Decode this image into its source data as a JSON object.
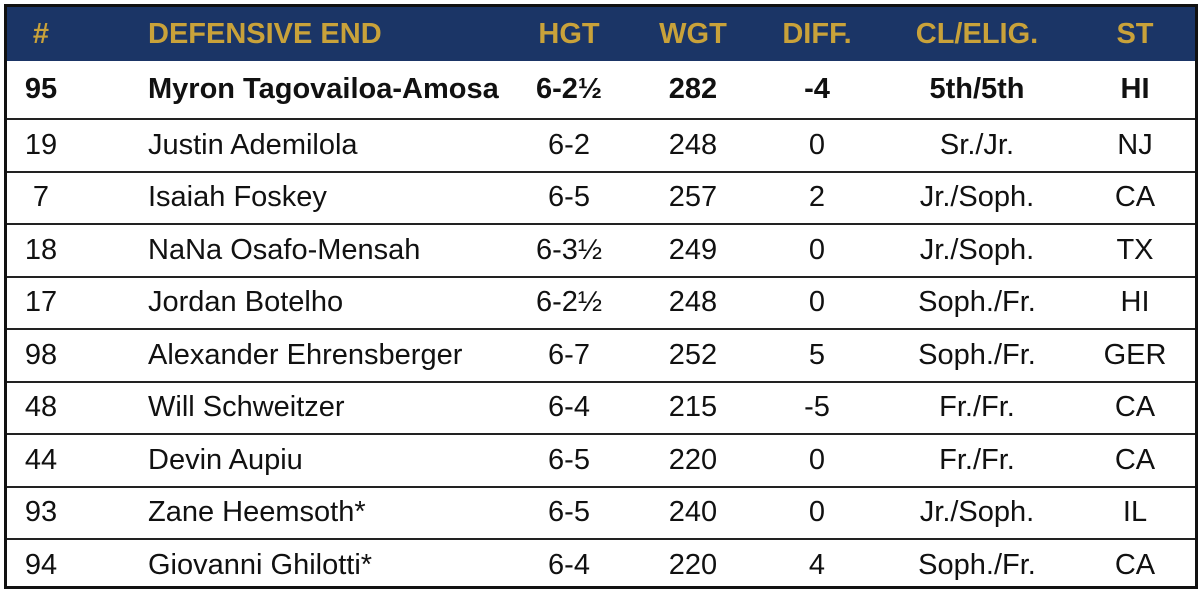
{
  "colors": {
    "header_background": "#1b3566",
    "header_text": "#c9a23a",
    "body_text": "#111111",
    "border": "#111111"
  },
  "table": {
    "headers": {
      "number": "#",
      "position": "DEFENSIVE END",
      "height": "HGT",
      "weight": "WGT",
      "diff": "DIFF.",
      "class_elig": "CL/ELIG.",
      "state": "ST"
    },
    "rows": [
      {
        "number": "95",
        "name": "Myron Tagovailoa-Amosa",
        "height": "6-2½",
        "weight": "282",
        "diff": "-4",
        "class_elig": "5th/5th",
        "state": "HI",
        "starter": true
      },
      {
        "number": "19",
        "name": "Justin Ademilola",
        "height": "6-2",
        "weight": "248",
        "diff": "0",
        "class_elig": "Sr./Jr.",
        "state": "NJ",
        "starter": false
      },
      {
        "number": "7",
        "name": "Isaiah Foskey",
        "height": "6-5",
        "weight": "257",
        "diff": "2",
        "class_elig": "Jr./Soph.",
        "state": "CA",
        "starter": false
      },
      {
        "number": "18",
        "name": "NaNa Osafo-Mensah",
        "height": "6-3½",
        "weight": "249",
        "diff": "0",
        "class_elig": "Jr./Soph.",
        "state": "TX",
        "starter": false
      },
      {
        "number": "17",
        "name": "Jordan Botelho",
        "height": "6-2½",
        "weight": "248",
        "diff": "0",
        "class_elig": "Soph./Fr.",
        "state": "HI",
        "starter": false
      },
      {
        "number": "98",
        "name": "Alexander Ehrensberger",
        "height": "6-7",
        "weight": "252",
        "diff": "5",
        "class_elig": "Soph./Fr.",
        "state": "GER",
        "starter": false
      },
      {
        "number": "48",
        "name": "Will Schweitzer",
        "height": "6-4",
        "weight": "215",
        "diff": "-5",
        "class_elig": "Fr./Fr.",
        "state": "CA",
        "starter": false
      },
      {
        "number": "44",
        "name": "Devin Aupiu",
        "height": "6-5",
        "weight": "220",
        "diff": "0",
        "class_elig": "Fr./Fr.",
        "state": "CA",
        "starter": false
      },
      {
        "number": "93",
        "name": "Zane Heemsoth*",
        "height": "6-5",
        "weight": "240",
        "diff": "0",
        "class_elig": "Jr./Soph.",
        "state": "IL",
        "starter": false
      },
      {
        "number": "94",
        "name": "Giovanni Ghilotti*",
        "height": "6-4",
        "weight": "220",
        "diff": "4",
        "class_elig": "Soph./Fr.",
        "state": "CA",
        "starter": false
      }
    ]
  }
}
